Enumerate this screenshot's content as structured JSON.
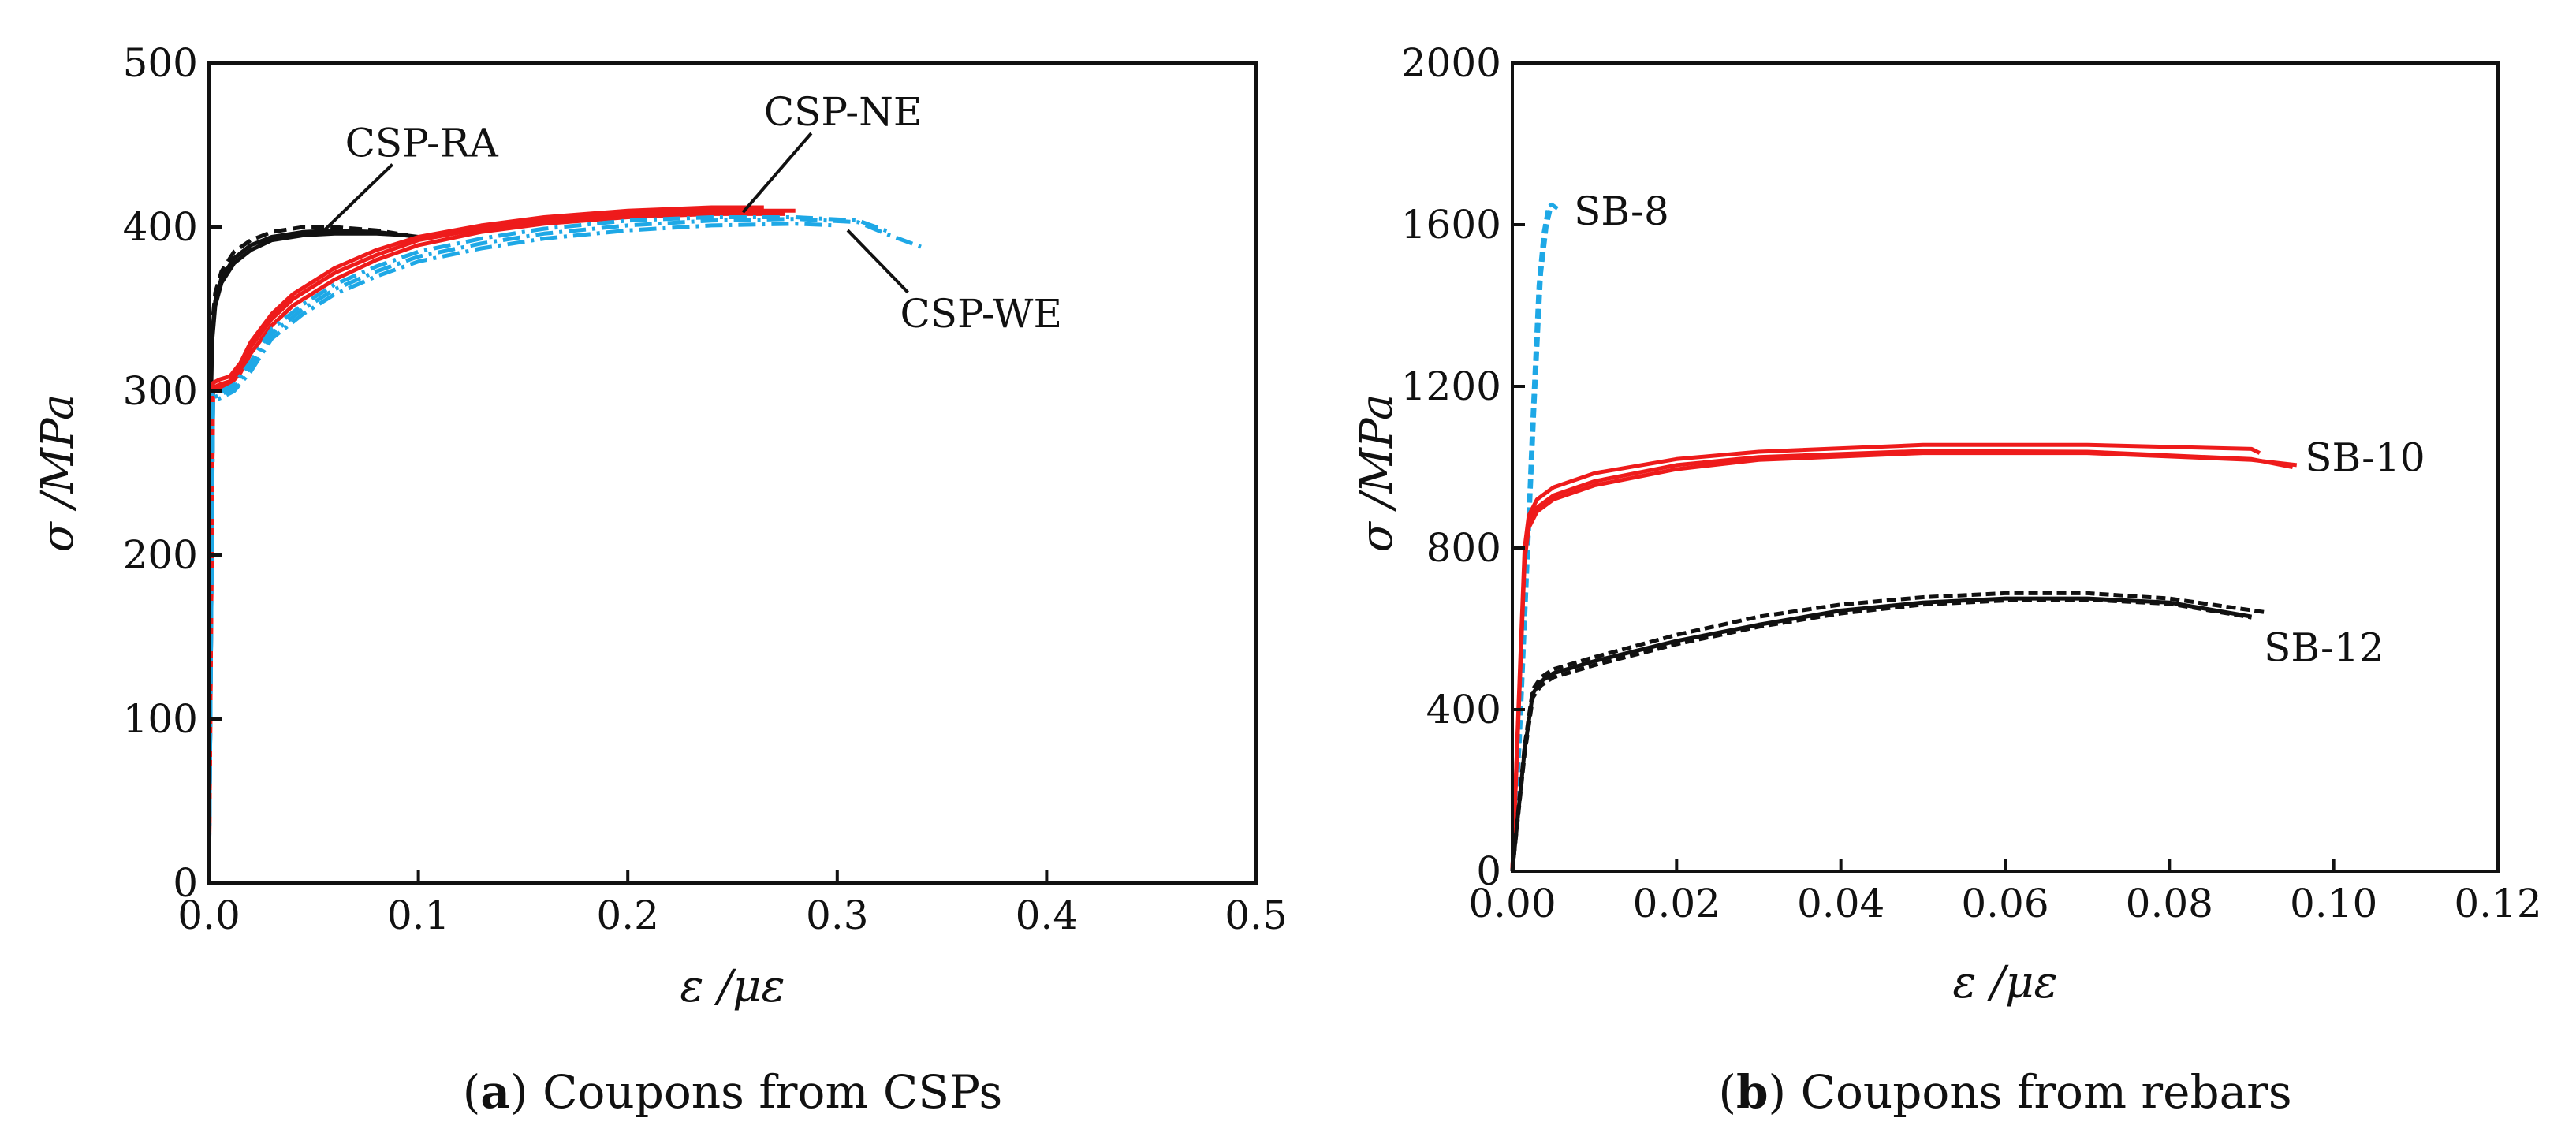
{
  "chart_data": [
    {
      "id": "a",
      "type": "line",
      "caption_letter": "a",
      "caption_text": "Coupons from CSPs",
      "xlabel": "ε /με",
      "ylabel": "σ /MPa",
      "xlim": [
        0,
        0.5
      ],
      "ylim": [
        0,
        500
      ],
      "xticks": [
        "0.0",
        "0.1",
        "0.2",
        "0.3",
        "0.4",
        "0.5"
      ],
      "xtick_values": [
        0,
        0.1,
        0.2,
        0.3,
        0.4,
        0.5
      ],
      "yticks": [
        "0",
        "100",
        "200",
        "300",
        "400",
        "500"
      ],
      "ytick_values": [
        0,
        100,
        200,
        300,
        400,
        500
      ],
      "annotations": [
        {
          "text": "CSP-RA",
          "at": [
            0.065,
            443
          ],
          "arrow_to": [
            0.055,
            398
          ]
        },
        {
          "text": "CSP-NE",
          "at": [
            0.265,
            462
          ],
          "arrow_to": [
            0.255,
            409
          ]
        },
        {
          "text": "CSP-WE",
          "at": [
            0.33,
            339
          ],
          "arrow_to": [
            0.305,
            398
          ]
        }
      ],
      "series": [
        {
          "name": "CSP-RA-1",
          "color": "#111111",
          "dash": "none",
          "x": [
            0,
            0.0008,
            0.0015,
            0.003,
            0.006,
            0.012,
            0.02,
            0.03,
            0.045,
            0.06,
            0.08,
            0.095
          ],
          "y": [
            0,
            280,
            330,
            352,
            366,
            378,
            386,
            392,
            395,
            396,
            396,
            395
          ]
        },
        {
          "name": "CSP-RA-2",
          "color": "#111111",
          "dash": "16,8",
          "x": [
            0,
            0.0008,
            0.0015,
            0.003,
            0.006,
            0.012,
            0.02,
            0.03,
            0.045,
            0.06,
            0.08,
            0.09
          ],
          "y": [
            0,
            290,
            340,
            360,
            373,
            385,
            392,
            397,
            400,
            400,
            398,
            396
          ]
        },
        {
          "name": "CSP-RA-3",
          "color": "#111111",
          "dash": "none",
          "x": [
            0,
            0.0008,
            0.0015,
            0.003,
            0.006,
            0.012,
            0.02,
            0.03,
            0.045,
            0.06,
            0.08,
            0.1
          ],
          "y": [
            0,
            285,
            335,
            355,
            369,
            381,
            389,
            394,
            397,
            398,
            397,
            394
          ]
        },
        {
          "name": "CSP-NE-1",
          "color": "#ee1b1b",
          "dash": "none",
          "x": [
            0,
            0.002,
            0.005,
            0.01,
            0.015,
            0.02,
            0.03,
            0.04,
            0.06,
            0.08,
            0.1,
            0.13,
            0.16,
            0.2,
            0.24,
            0.28
          ],
          "y": [
            0,
            302,
            304,
            306,
            314,
            327,
            344,
            356,
            372,
            383,
            392,
            399,
            404,
            408,
            410,
            410
          ]
        },
        {
          "name": "CSP-NE-2",
          "color": "#ee1b1b",
          "dash": "none",
          "x": [
            0,
            0.002,
            0.005,
            0.01,
            0.015,
            0.02,
            0.03,
            0.04,
            0.06,
            0.08,
            0.1,
            0.13,
            0.16,
            0.2,
            0.24,
            0.265
          ],
          "y": [
            0,
            305,
            307,
            309,
            317,
            330,
            347,
            359,
            375,
            386,
            394,
            401,
            406,
            410,
            412,
            412
          ]
        },
        {
          "name": "CSP-NE-3",
          "color": "#ee1b1b",
          "dash": "none",
          "x": [
            0,
            0.002,
            0.005,
            0.01,
            0.015,
            0.02,
            0.03,
            0.04,
            0.06,
            0.08,
            0.1,
            0.13,
            0.16,
            0.2,
            0.24,
            0.275
          ],
          "y": [
            0,
            300,
            302,
            304,
            311,
            323,
            340,
            352,
            368,
            380,
            389,
            397,
            402,
            406,
            408,
            408
          ]
        },
        {
          "name": "CSP-WE-1",
          "color": "#1ea8e6",
          "dash": "22,8,4,8",
          "x": [
            0,
            0.002,
            0.006,
            0.012,
            0.02,
            0.03,
            0.045,
            0.06,
            0.08,
            0.1,
            0.13,
            0.16,
            0.2,
            0.24,
            0.28,
            0.31,
            0.325,
            0.34
          ],
          "y": [
            0,
            296,
            298,
            302,
            315,
            335,
            350,
            362,
            373,
            382,
            390,
            396,
            401,
            404,
            405,
            403,
            395,
            388
          ]
        },
        {
          "name": "CSP-WE-2",
          "color": "#1ea8e6",
          "dash": "22,8,4,8",
          "x": [
            0,
            0.002,
            0.006,
            0.012,
            0.02,
            0.03,
            0.045,
            0.06,
            0.08,
            0.1,
            0.13,
            0.16,
            0.2,
            0.24,
            0.28,
            0.31,
            0.325
          ],
          "y": [
            0,
            298,
            300,
            304,
            318,
            338,
            353,
            365,
            376,
            385,
            393,
            399,
            404,
            406,
            406,
            404,
            397
          ]
        },
        {
          "name": "CSP-WE-3",
          "color": "#1ea8e6",
          "dash": "22,8,4,8",
          "x": [
            0,
            0.002,
            0.006,
            0.012,
            0.02,
            0.03,
            0.045,
            0.06,
            0.08,
            0.1,
            0.13,
            0.16,
            0.2,
            0.24,
            0.28,
            0.3
          ],
          "y": [
            0,
            294,
            296,
            300,
            312,
            332,
            347,
            359,
            370,
            379,
            387,
            393,
            398,
            401,
            402,
            401
          ]
        }
      ]
    },
    {
      "id": "b",
      "type": "line",
      "caption_letter": "b",
      "caption_text": "Coupons from rebars",
      "xlabel": "ε /με",
      "ylabel": "σ /MPa",
      "xlim": [
        0,
        0.12
      ],
      "ylim": [
        0,
        2000
      ],
      "xticks": [
        "0.00",
        "0.02",
        "0.04",
        "0.06",
        "0.08",
        "0.10",
        "0.12"
      ],
      "xtick_values": [
        0,
        0.02,
        0.04,
        0.06,
        0.08,
        0.1,
        0.12
      ],
      "yticks": [
        "0",
        "400",
        "800",
        "1200",
        "1600",
        "2000"
      ],
      "ytick_values": [
        0,
        400,
        800,
        1200,
        1600,
        2000
      ],
      "annotations": [
        {
          "text": "SB-8",
          "at": [
            0.0075,
            1600
          ]
        },
        {
          "text": "SB-10",
          "at": [
            0.0965,
            990
          ]
        },
        {
          "text": "SB-12",
          "at": [
            0.0915,
            520
          ]
        }
      ],
      "series": [
        {
          "name": "SB-8-1",
          "color": "#1ea8e6",
          "dash": "12,6",
          "x": [
            0,
            0.0008,
            0.0016,
            0.0024,
            0.0032,
            0.0038,
            0.0044,
            0.0048
          ],
          "y": [
            0,
            300,
            700,
            1100,
            1450,
            1580,
            1645,
            1650
          ]
        },
        {
          "name": "SB-8-2",
          "color": "#1ea8e6",
          "dash": "12,6",
          "x": [
            0,
            0.0009,
            0.0018,
            0.0027,
            0.0035,
            0.0042,
            0.0048,
            0.0055
          ],
          "y": [
            0,
            320,
            740,
            1150,
            1480,
            1600,
            1650,
            1640
          ]
        },
        {
          "name": "SB-8-3",
          "color": "#1ea8e6",
          "dash": "12,6",
          "x": [
            0,
            0.0008,
            0.0017,
            0.0026,
            0.0034,
            0.004,
            0.0046
          ],
          "y": [
            0,
            310,
            720,
            1120,
            1460,
            1590,
            1640
          ]
        },
        {
          "name": "SB-10-1",
          "color": "#ee1b1b",
          "dash": "none",
          "x": [
            0,
            0.001,
            0.0015,
            0.002,
            0.003,
            0.005,
            0.01,
            0.02,
            0.03,
            0.05,
            0.07,
            0.09,
            0.095
          ],
          "y": [
            0,
            520,
            780,
            860,
            900,
            930,
            965,
            1005,
            1025,
            1040,
            1038,
            1020,
            1000
          ]
        },
        {
          "name": "SB-10-2",
          "color": "#ee1b1b",
          "dash": "none",
          "x": [
            0,
            0.001,
            0.0015,
            0.002,
            0.003,
            0.005,
            0.01,
            0.02,
            0.03,
            0.05,
            0.07,
            0.09,
            0.091
          ],
          "y": [
            0,
            540,
            800,
            880,
            920,
            950,
            985,
            1020,
            1038,
            1055,
            1055,
            1045,
            1035
          ]
        },
        {
          "name": "SB-10-3",
          "color": "#ee1b1b",
          "dash": "none",
          "x": [
            0,
            0.001,
            0.0015,
            0.002,
            0.003,
            0.005,
            0.01,
            0.02,
            0.03,
            0.05,
            0.07,
            0.09,
            0.0955
          ],
          "y": [
            0,
            510,
            770,
            850,
            890,
            920,
            955,
            995,
            1018,
            1035,
            1035,
            1018,
            1005
          ]
        },
        {
          "name": "SB-12-1",
          "color": "#111111",
          "dash": "none",
          "x": [
            0,
            0.0015,
            0.0025,
            0.0035,
            0.005,
            0.01,
            0.02,
            0.03,
            0.04,
            0.05,
            0.06,
            0.07,
            0.08,
            0.09
          ],
          "y": [
            0,
            300,
            440,
            470,
            490,
            520,
            570,
            610,
            645,
            665,
            675,
            675,
            665,
            630
          ]
        },
        {
          "name": "SB-12-2",
          "color": "#111111",
          "dash": "12,6",
          "x": [
            0,
            0.0015,
            0.0025,
            0.0035,
            0.005,
            0.01,
            0.02,
            0.03,
            0.04,
            0.05,
            0.06,
            0.07,
            0.08,
            0.092
          ],
          "y": [
            0,
            310,
            450,
            480,
            500,
            530,
            585,
            630,
            660,
            678,
            688,
            688,
            675,
            640
          ]
        },
        {
          "name": "SB-12-3",
          "color": "#111111",
          "dash": "12,6",
          "x": [
            0,
            0.0015,
            0.0025,
            0.0035,
            0.005,
            0.01,
            0.02,
            0.03,
            0.04,
            0.05,
            0.06,
            0.07,
            0.08,
            0.09
          ],
          "y": [
            0,
            290,
            430,
            460,
            480,
            510,
            562,
            605,
            638,
            660,
            670,
            672,
            662,
            628
          ]
        }
      ]
    }
  ]
}
